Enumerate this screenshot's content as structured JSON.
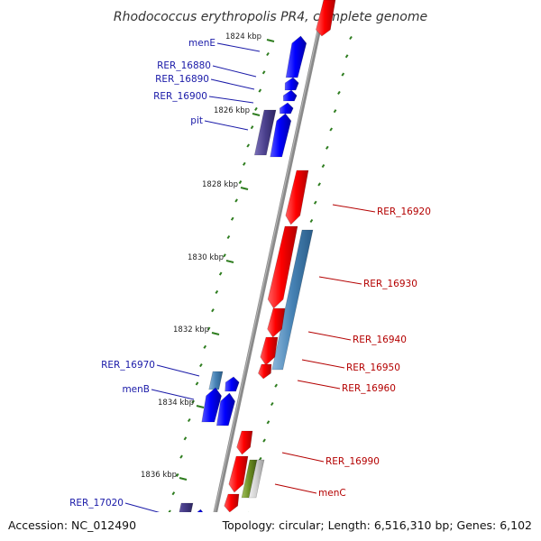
{
  "title": "Rhodococcus erythropolis PR4, complete genome",
  "footer": {
    "accession": "Accession: NC_012490",
    "topology": "Topology: circular; Length: 6,516,310 bp; Genes: 6,102"
  },
  "colors": {
    "forward_gene": "#0000ff",
    "reverse_gene": "#ff0000",
    "cds_dark": "#4a3f8c",
    "cds_light": "#4682b4",
    "rna": "#6b8e23",
    "misc": "#c8c8c8",
    "tick": "#2e7d1f",
    "backbone": "#8a8a8a"
  },
  "kbp_labels": [
    "1824 kbp",
    "1826 kbp",
    "1828 kbp",
    "1830 kbp",
    "1832 kbp",
    "1834 kbp",
    "1836 kbp"
  ],
  "genes_left": [
    {
      "name": "menE"
    },
    {
      "name": "RER_16880"
    },
    {
      "name": "RER_16890"
    },
    {
      "name": "RER_16900"
    },
    {
      "name": "pit"
    },
    {
      "name": "RER_16970"
    },
    {
      "name": "menB"
    },
    {
      "name": "RER_17020"
    }
  ],
  "genes_right": [
    {
      "name": "RER_16920"
    },
    {
      "name": "RER_16930"
    },
    {
      "name": "RER_16940"
    },
    {
      "name": "RER_16950"
    },
    {
      "name": "RER_16960"
    },
    {
      "name": "RER_16990"
    },
    {
      "name": "menC"
    }
  ]
}
